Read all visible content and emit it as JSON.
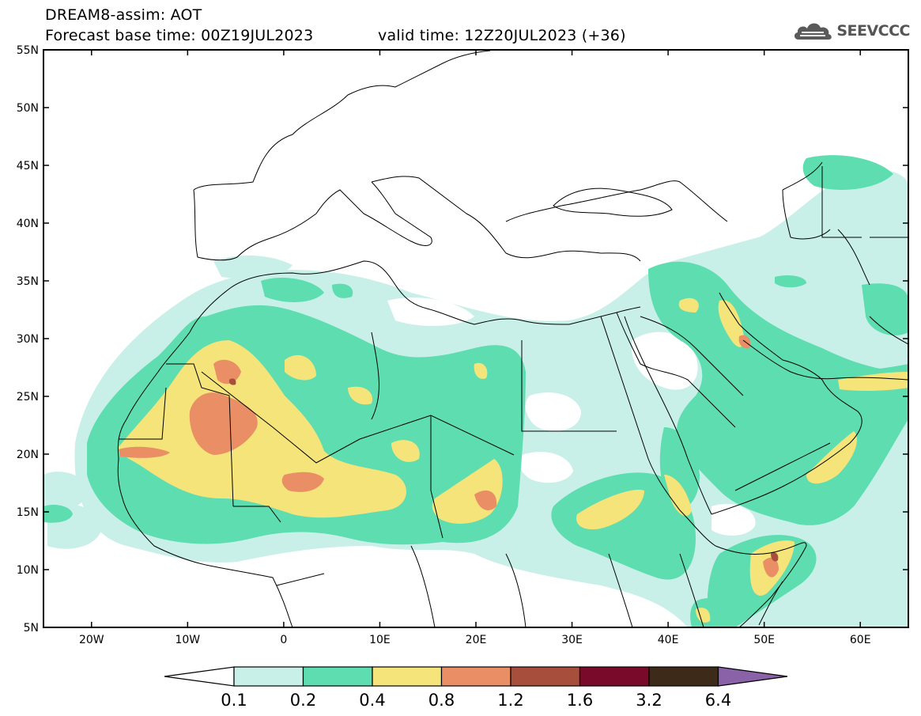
{
  "header": {
    "title": "DREAM8-assim: AOT",
    "base_time": "Forecast base time: 00Z19JUL2023",
    "valid_time": "valid time: 12Z20JUL2023 (+36)"
  },
  "logo": {
    "text": "SEEVCCC",
    "icon": "cloud-icon"
  },
  "map": {
    "lat_labels": [
      "55N",
      "50N",
      "45N",
      "40N",
      "35N",
      "30N",
      "25N",
      "20N",
      "15N",
      "10N",
      "5N"
    ],
    "lon_labels": [
      "20W",
      "10W",
      "0",
      "10E",
      "20E",
      "30E",
      "40E",
      "50E",
      "60E"
    ],
    "lat_range": [
      5,
      55
    ],
    "lon_range": [
      -25,
      65
    ]
  },
  "legend": {
    "thresholds": [
      "0.1",
      "0.2",
      "0.4",
      "0.8",
      "1.2",
      "1.6",
      "3.2",
      "6.4"
    ],
    "colors": [
      "#ffffff",
      "#c8f0e8",
      "#5dddb0",
      "#f5e47a",
      "#ea8e65",
      "#a84e3c",
      "#7a0a2a",
      "#3e2a18",
      "#8a62a8"
    ]
  }
}
